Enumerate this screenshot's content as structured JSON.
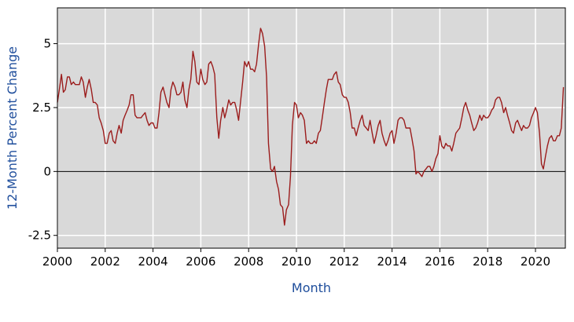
{
  "chart_data": {
    "type": "line",
    "title": "",
    "xlabel": "Month",
    "ylabel": "12-Month Percent Change",
    "xlim": [
      2000,
      2021.25
    ],
    "ylim": [
      -3,
      6.4
    ],
    "x_ticks": [
      2000,
      2002,
      2004,
      2006,
      2008,
      2010,
      2012,
      2014,
      2016,
      2018,
      2020
    ],
    "x_tick_labels": [
      "2000",
      "2002",
      "2004",
      "2006",
      "2008",
      "2010",
      "2012",
      "2014",
      "2016",
      "2018",
      "2020"
    ],
    "y_ticks": [
      -2.5,
      0,
      2.5,
      5
    ],
    "y_tick_labels": [
      "-2.5",
      "0",
      "2.5",
      "5"
    ],
    "grid": true,
    "zero_line": true,
    "legend": "none",
    "colors": {
      "line": "#9b1c1c",
      "plot_background": "#d9d9d9",
      "grid": "#ffffff",
      "axis_title": "#1f4e9c",
      "zero_line": "#000000"
    },
    "series": [
      {
        "x": [
          2000.0,
          2000.08,
          2000.17,
          2000.25,
          2000.33,
          2000.42,
          2000.5,
          2000.58,
          2000.67,
          2000.75,
          2000.83,
          2000.92,
          2001.0,
          2001.08,
          2001.17,
          2001.25,
          2001.33,
          2001.42,
          2001.5,
          2001.58,
          2001.67,
          2001.75,
          2001.83,
          2001.92,
          2002.0,
          2002.08,
          2002.17,
          2002.25,
          2002.33,
          2002.42,
          2002.5,
          2002.58,
          2002.67,
          2002.75,
          2002.83,
          2002.92,
          2003.0,
          2003.08,
          2003.17,
          2003.25,
          2003.33,
          2003.42,
          2003.5,
          2003.58,
          2003.67,
          2003.75,
          2003.83,
          2003.92,
          2004.0,
          2004.08,
          2004.17,
          2004.25,
          2004.33,
          2004.42,
          2004.5,
          2004.58,
          2004.67,
          2004.75,
          2004.83,
          2004.92,
          2005.0,
          2005.08,
          2005.17,
          2005.25,
          2005.33,
          2005.42,
          2005.5,
          2005.58,
          2005.67,
          2005.75,
          2005.83,
          2005.92,
          2006.0,
          2006.08,
          2006.17,
          2006.25,
          2006.33,
          2006.42,
          2006.5,
          2006.58,
          2006.67,
          2006.75,
          2006.83,
          2006.92,
          2007.0,
          2007.08,
          2007.17,
          2007.25,
          2007.33,
          2007.42,
          2007.5,
          2007.58,
          2007.67,
          2007.75,
          2007.83,
          2007.92,
          2008.0,
          2008.08,
          2008.17,
          2008.25,
          2008.33,
          2008.42,
          2008.5,
          2008.58,
          2008.67,
          2008.75,
          2008.83,
          2008.92,
          2009.0,
          2009.08,
          2009.17,
          2009.25,
          2009.33,
          2009.42,
          2009.5,
          2009.58,
          2009.67,
          2009.75,
          2009.83,
          2009.92,
          2010.0,
          2010.08,
          2010.17,
          2010.25,
          2010.33,
          2010.42,
          2010.5,
          2010.58,
          2010.67,
          2010.75,
          2010.83,
          2010.92,
          2011.0,
          2011.08,
          2011.17,
          2011.25,
          2011.33,
          2011.42,
          2011.5,
          2011.58,
          2011.67,
          2011.75,
          2011.83,
          2011.92,
          2012.0,
          2012.08,
          2012.17,
          2012.25,
          2012.33,
          2012.42,
          2012.5,
          2012.58,
          2012.67,
          2012.75,
          2012.83,
          2012.92,
          2013.0,
          2013.08,
          2013.17,
          2013.25,
          2013.33,
          2013.42,
          2013.5,
          2013.58,
          2013.67,
          2013.75,
          2013.83,
          2013.92,
          2014.0,
          2014.08,
          2014.17,
          2014.25,
          2014.33,
          2014.42,
          2014.5,
          2014.58,
          2014.67,
          2014.75,
          2014.83,
          2014.92,
          2015.0,
          2015.08,
          2015.17,
          2015.25,
          2015.33,
          2015.42,
          2015.5,
          2015.58,
          2015.67,
          2015.75,
          2015.83,
          2015.92,
          2016.0,
          2016.08,
          2016.17,
          2016.25,
          2016.33,
          2016.42,
          2016.5,
          2016.58,
          2016.67,
          2016.75,
          2016.83,
          2016.92,
          2017.0,
          2017.08,
          2017.17,
          2017.25,
          2017.33,
          2017.42,
          2017.5,
          2017.58,
          2017.67,
          2017.75,
          2017.83,
          2017.92,
          2018.0,
          2018.08,
          2018.17,
          2018.25,
          2018.33,
          2018.42,
          2018.5,
          2018.58,
          2018.67,
          2018.75,
          2018.83,
          2018.92,
          2019.0,
          2019.08,
          2019.17,
          2019.25,
          2019.33,
          2019.42,
          2019.5,
          2019.58,
          2019.67,
          2019.75,
          2019.83,
          2019.92,
          2020.0,
          2020.08,
          2020.17,
          2020.25,
          2020.33,
          2020.42,
          2020.5,
          2020.58,
          2020.67,
          2020.75,
          2020.83,
          2020.92,
          2021.0,
          2021.08,
          2021.17
        ],
        "values": [
          2.7,
          3.2,
          3.8,
          3.1,
          3.2,
          3.7,
          3.7,
          3.4,
          3.5,
          3.4,
          3.4,
          3.4,
          3.7,
          3.5,
          2.9,
          3.3,
          3.6,
          3.2,
          2.7,
          2.7,
          2.6,
          2.1,
          1.9,
          1.6,
          1.1,
          1.1,
          1.5,
          1.6,
          1.2,
          1.1,
          1.5,
          1.8,
          1.5,
          2.0,
          2.2,
          2.4,
          2.6,
          3.0,
          3.0,
          2.2,
          2.1,
          2.1,
          2.1,
          2.2,
          2.3,
          2.0,
          1.8,
          1.9,
          1.9,
          1.7,
          1.7,
          2.3,
          3.1,
          3.3,
          3.0,
          2.7,
          2.5,
          3.2,
          3.5,
          3.3,
          3.0,
          3.0,
          3.1,
          3.5,
          2.8,
          2.5,
          3.2,
          3.6,
          4.7,
          4.3,
          3.5,
          3.4,
          4.0,
          3.6,
          3.4,
          3.5,
          4.2,
          4.3,
          4.1,
          3.8,
          2.1,
          1.3,
          2.0,
          2.5,
          2.1,
          2.4,
          2.8,
          2.6,
          2.7,
          2.7,
          2.4,
          2.0,
          2.8,
          3.5,
          4.3,
          4.1,
          4.3,
          4.0,
          4.0,
          3.9,
          4.2,
          5.0,
          5.6,
          5.4,
          4.9,
          3.7,
          1.1,
          0.1,
          0.0,
          0.2,
          -0.4,
          -0.7,
          -1.3,
          -1.4,
          -2.1,
          -1.5,
          -1.3,
          -0.2,
          1.8,
          2.7,
          2.6,
          2.1,
          2.3,
          2.2,
          2.0,
          1.1,
          1.2,
          1.1,
          1.1,
          1.2,
          1.1,
          1.5,
          1.6,
          2.1,
          2.7,
          3.2,
          3.6,
          3.6,
          3.6,
          3.8,
          3.9,
          3.5,
          3.4,
          3.0,
          2.9,
          2.9,
          2.7,
          2.3,
          1.7,
          1.7,
          1.4,
          1.7,
          2.0,
          2.2,
          1.8,
          1.7,
          1.6,
          2.0,
          1.5,
          1.1,
          1.4,
          1.8,
          2.0,
          1.5,
          1.2,
          1.0,
          1.2,
          1.5,
          1.6,
          1.1,
          1.5,
          2.0,
          2.1,
          2.1,
          2.0,
          1.7,
          1.7,
          1.7,
          1.3,
          0.8,
          -0.1,
          0.0,
          -0.1,
          -0.2,
          0.0,
          0.1,
          0.2,
          0.2,
          0.0,
          0.2,
          0.5,
          0.7,
          1.4,
          1.0,
          0.9,
          1.1,
          1.0,
          1.0,
          0.8,
          1.1,
          1.5,
          1.6,
          1.7,
          2.1,
          2.5,
          2.7,
          2.4,
          2.2,
          1.9,
          1.6,
          1.7,
          1.9,
          2.2,
          2.0,
          2.2,
          2.1,
          2.1,
          2.2,
          2.4,
          2.5,
          2.8,
          2.9,
          2.9,
          2.7,
          2.3,
          2.5,
          2.2,
          1.9,
          1.6,
          1.5,
          1.9,
          2.0,
          1.8,
          1.6,
          1.8,
          1.7,
          1.7,
          1.8,
          2.1,
          2.3,
          2.5,
          2.3,
          1.5,
          0.3,
          0.1,
          0.6,
          1.0,
          1.3,
          1.4,
          1.2,
          1.2,
          1.4,
          1.4,
          1.7,
          3.3
        ]
      }
    ]
  }
}
